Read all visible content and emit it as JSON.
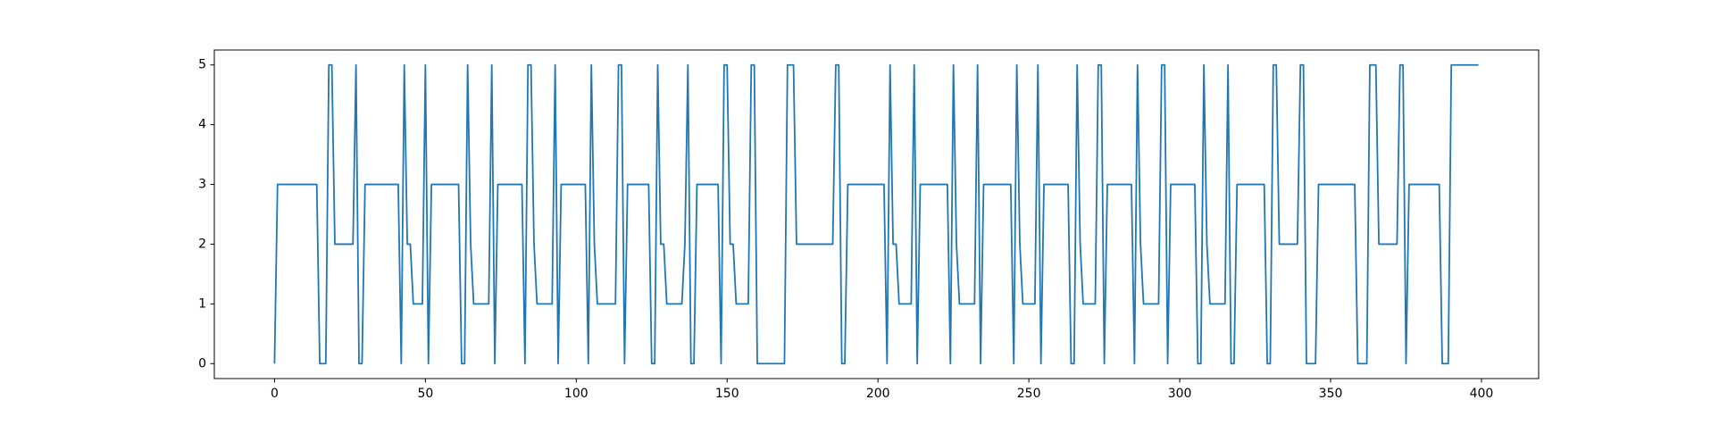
{
  "chart_data": {
    "type": "line",
    "color": "#1f77b4",
    "values": [
      0,
      3,
      3,
      3,
      3,
      3,
      3,
      3,
      3,
      3,
      3,
      3,
      3,
      3,
      3,
      0,
      0,
      0,
      5,
      5,
      2,
      2,
      2,
      2,
      2,
      2,
      2,
      5,
      0,
      0,
      3,
      3,
      3,
      3,
      3,
      3,
      3,
      3,
      3,
      3,
      3,
      3,
      0,
      5,
      2,
      2,
      1,
      1,
      1,
      1,
      5,
      0,
      3,
      3,
      3,
      3,
      3,
      3,
      3,
      3,
      3,
      3,
      0,
      0,
      5,
      2,
      1,
      1,
      1,
      1,
      1,
      1,
      5,
      0,
      3,
      3,
      3,
      3,
      3,
      3,
      3,
      3,
      3,
      0,
      5,
      5,
      2,
      1,
      1,
      1,
      1,
      1,
      1,
      5,
      0,
      3,
      3,
      3,
      3,
      3,
      3,
      3,
      3,
      3,
      0,
      5,
      2,
      1,
      1,
      1,
      1,
      1,
      1,
      1,
      5,
      5,
      0,
      3,
      3,
      3,
      3,
      3,
      3,
      3,
      3,
      0,
      0,
      5,
      2,
      2,
      1,
      1,
      1,
      1,
      1,
      1,
      2,
      5,
      0,
      0,
      3,
      3,
      3,
      3,
      3,
      3,
      3,
      3,
      0,
      5,
      5,
      2,
      2,
      1,
      1,
      1,
      1,
      1,
      5,
      5,
      0,
      0,
      0,
      0,
      0,
      0,
      0,
      0,
      0,
      0,
      5,
      5,
      5,
      2,
      2,
      2,
      2,
      2,
      2,
      2,
      2,
      2,
      2,
      2,
      2,
      2,
      5,
      5,
      0,
      0,
      3,
      3,
      3,
      3,
      3,
      3,
      3,
      3,
      3,
      3,
      3,
      3,
      3,
      0,
      5,
      2,
      2,
      1,
      1,
      1,
      1,
      1,
      5,
      0,
      3,
      3,
      3,
      3,
      3,
      3,
      3,
      3,
      3,
      3,
      0,
      5,
      2,
      1,
      1,
      1,
      1,
      1,
      1,
      5,
      0,
      3,
      3,
      3,
      3,
      3,
      3,
      3,
      3,
      3,
      3,
      0,
      5,
      2,
      1,
      1,
      1,
      1,
      1,
      5,
      0,
      3,
      3,
      3,
      3,
      3,
      3,
      3,
      3,
      3,
      0,
      0,
      5,
      2,
      1,
      1,
      1,
      1,
      1,
      5,
      5,
      0,
      3,
      3,
      3,
      3,
      3,
      3,
      3,
      3,
      3,
      0,
      5,
      2,
      1,
      1,
      1,
      1,
      1,
      1,
      5,
      5,
      0,
      3,
      3,
      3,
      3,
      3,
      3,
      3,
      3,
      3,
      0,
      0,
      5,
      2,
      1,
      1,
      1,
      1,
      1,
      1,
      5,
      0,
      0,
      3,
      3,
      3,
      3,
      3,
      3,
      3,
      3,
      3,
      3,
      0,
      0,
      5,
      5,
      2,
      2,
      2,
      2,
      2,
      2,
      2,
      5,
      5,
      0,
      0,
      0,
      0,
      3,
      3,
      3,
      3,
      3,
      3,
      3,
      3,
      3,
      3,
      3,
      3,
      3,
      0,
      0,
      0,
      0,
      5,
      5,
      5,
      2,
      2,
      2,
      2,
      2,
      2,
      2,
      5,
      5,
      0,
      3,
      3,
      3,
      3,
      3,
      3,
      3,
      3,
      3,
      3,
      3,
      0,
      0,
      0,
      5,
      5,
      5,
      5,
      5,
      5,
      5,
      5,
      5,
      5
    ],
    "xlim": [
      -19.95,
      418.95
    ],
    "xticks": [
      0,
      50,
      100,
      150,
      200,
      250,
      300,
      350,
      400
    ],
    "ylim": [
      -0.25,
      5.25
    ],
    "yticks": [
      0,
      1,
      2,
      3,
      4,
      5
    ]
  }
}
